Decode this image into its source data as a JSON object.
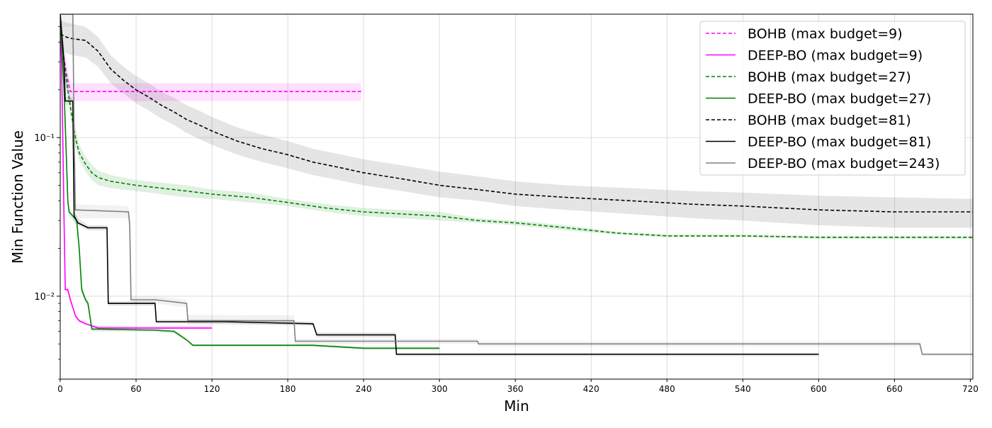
{
  "chart_data": {
    "type": "line",
    "title": "",
    "xlabel": "Min",
    "ylabel": "Min Function Value",
    "xlim": [
      0,
      722
    ],
    "ylim": [
      0.003,
      0.6
    ],
    "yscale": "log",
    "grid": true,
    "legend_position": "top-right",
    "x_ticks": [
      0,
      60,
      120,
      180,
      240,
      300,
      360,
      420,
      480,
      540,
      600,
      660,
      720
    ],
    "x_tick_labels": [
      "0",
      "60",
      "120",
      "180",
      "240",
      "300",
      "360",
      "420",
      "480",
      "540",
      "600",
      "660",
      "720"
    ],
    "y_ticks": [
      0.01,
      0.1
    ],
    "y_tick_labels": [
      "10⁻²",
      "10⁻¹"
    ],
    "series": [
      {
        "name": "BOHB (max budget=9)",
        "color": "#ff00ff",
        "style": "dashed",
        "x": [
          0,
          5,
          8,
          10,
          238
        ],
        "y": [
          0.45,
          0.25,
          0.195,
          0.195,
          0.195
        ],
        "band_low": [
          0.35,
          0.2,
          0.17,
          0.17,
          0.17
        ],
        "band_high": [
          0.55,
          0.3,
          0.22,
          0.22,
          0.22
        ]
      },
      {
        "name": "DEEP-BO (max budget=9)",
        "color": "#ff00ff",
        "style": "solid",
        "x": [
          0,
          1,
          2,
          3,
          4,
          6,
          8,
          10,
          12,
          15,
          20,
          25,
          30,
          120
        ],
        "y": [
          0.6,
          0.3,
          0.1,
          0.03,
          0.011,
          0.011,
          0.0095,
          0.0085,
          0.0075,
          0.007,
          0.0067,
          0.0065,
          0.0063,
          0.0063
        ],
        "band_low": [
          0.5,
          0.25,
          0.08,
          0.025,
          0.0105,
          0.0105,
          0.009,
          0.0082,
          0.0073,
          0.0068,
          0.0066,
          0.0064,
          0.0062,
          0.0062
        ],
        "band_high": [
          0.7,
          0.35,
          0.12,
          0.035,
          0.0115,
          0.0115,
          0.01,
          0.0088,
          0.0078,
          0.0072,
          0.0069,
          0.0066,
          0.0065,
          0.0065
        ]
      },
      {
        "name": "BOHB (max budget=27)",
        "color": "#008000",
        "style": "dashed",
        "x": [
          0,
          3,
          6,
          9,
          12,
          15,
          20,
          25,
          30,
          40,
          60,
          80,
          100,
          120,
          150,
          180,
          210,
          240,
          270,
          300,
          330,
          360,
          400,
          440,
          480,
          540,
          600,
          660,
          722
        ],
        "y": [
          0.45,
          0.3,
          0.2,
          0.14,
          0.1,
          0.08,
          0.068,
          0.06,
          0.056,
          0.053,
          0.05,
          0.048,
          0.046,
          0.044,
          0.042,
          0.039,
          0.036,
          0.034,
          0.033,
          0.032,
          0.03,
          0.029,
          0.027,
          0.025,
          0.024,
          0.024,
          0.0235,
          0.0235,
          0.0235
        ],
        "band_low": [
          0.4,
          0.26,
          0.17,
          0.12,
          0.088,
          0.071,
          0.061,
          0.054,
          0.05,
          0.048,
          0.046,
          0.044,
          0.042,
          0.041,
          0.039,
          0.037,
          0.034,
          0.032,
          0.031,
          0.03,
          0.029,
          0.028,
          0.026,
          0.0245,
          0.0235,
          0.0235,
          0.023,
          0.023,
          0.023
        ],
        "band_high": [
          0.5,
          0.34,
          0.23,
          0.16,
          0.115,
          0.09,
          0.076,
          0.067,
          0.062,
          0.058,
          0.054,
          0.052,
          0.05,
          0.047,
          0.045,
          0.041,
          0.038,
          0.036,
          0.035,
          0.034,
          0.031,
          0.03,
          0.028,
          0.0255,
          0.0245,
          0.0245,
          0.024,
          0.024,
          0.024
        ]
      },
      {
        "name": "DEEP-BO (max budget=27)",
        "color": "#008000",
        "style": "solid",
        "x": [
          0,
          3,
          5,
          6,
          7,
          10,
          13,
          15,
          17,
          20,
          22,
          25,
          30,
          75,
          90,
          100,
          105,
          200,
          240,
          300
        ],
        "y": [
          0.6,
          0.2,
          0.07,
          0.04,
          0.034,
          0.032,
          0.03,
          0.02,
          0.011,
          0.0095,
          0.009,
          0.0062,
          0.0062,
          0.0061,
          0.006,
          0.0053,
          0.0049,
          0.0049,
          0.0047,
          0.0047
        ],
        "band_low": [
          0.55,
          0.18,
          0.065,
          0.037,
          0.032,
          0.03,
          0.028,
          0.018,
          0.0105,
          0.009,
          0.0085,
          0.006,
          0.006,
          0.006,
          0.0058,
          0.0052,
          0.0048,
          0.0048,
          0.0046,
          0.0046
        ],
        "band_high": [
          0.65,
          0.22,
          0.075,
          0.043,
          0.036,
          0.034,
          0.032,
          0.022,
          0.0118,
          0.01,
          0.0095,
          0.0065,
          0.0065,
          0.0063,
          0.0062,
          0.0054,
          0.005,
          0.005,
          0.0048,
          0.0048
        ]
      },
      {
        "name": "BOHB (max budget=81)",
        "color": "#000000",
        "style": "dashed",
        "x": [
          0,
          5,
          10,
          20,
          30,
          40,
          50,
          60,
          70,
          80,
          90,
          100,
          110,
          120,
          140,
          160,
          180,
          200,
          220,
          240,
          270,
          300,
          330,
          360,
          400,
          450,
          500,
          540,
          570,
          600,
          660,
          722
        ],
        "y": [
          0.45,
          0.43,
          0.42,
          0.41,
          0.35,
          0.27,
          0.23,
          0.2,
          0.18,
          0.16,
          0.145,
          0.13,
          0.12,
          0.11,
          0.095,
          0.085,
          0.078,
          0.07,
          0.065,
          0.06,
          0.055,
          0.05,
          0.047,
          0.044,
          0.042,
          0.04,
          0.038,
          0.037,
          0.036,
          0.035,
          0.034,
          0.034
        ],
        "band_low": [
          0.36,
          0.34,
          0.33,
          0.32,
          0.28,
          0.22,
          0.19,
          0.165,
          0.148,
          0.132,
          0.12,
          0.107,
          0.098,
          0.09,
          0.078,
          0.07,
          0.064,
          0.058,
          0.054,
          0.05,
          0.046,
          0.042,
          0.04,
          0.037,
          0.035,
          0.033,
          0.031,
          0.03,
          0.029,
          0.028,
          0.027,
          0.027
        ],
        "band_high": [
          0.55,
          0.53,
          0.52,
          0.5,
          0.43,
          0.33,
          0.28,
          0.245,
          0.22,
          0.195,
          0.178,
          0.16,
          0.148,
          0.135,
          0.116,
          0.104,
          0.095,
          0.085,
          0.079,
          0.073,
          0.067,
          0.061,
          0.057,
          0.053,
          0.05,
          0.048,
          0.046,
          0.045,
          0.044,
          0.043,
          0.042,
          0.041
        ]
      },
      {
        "name": "DEEP-BO (max budget=81)",
        "color": "#000000",
        "style": "solid",
        "x": [
          0,
          3,
          4,
          5,
          10,
          11,
          14,
          22,
          37,
          38,
          75,
          76,
          130,
          200,
          203,
          265,
          266,
          600
        ],
        "y": [
          0.6,
          0.3,
          0.17,
          0.17,
          0.17,
          0.032,
          0.029,
          0.027,
          0.027,
          0.009,
          0.009,
          0.0069,
          0.0069,
          0.0067,
          0.0057,
          0.0057,
          0.0043,
          0.0043
        ],
        "band_low": [
          0.55,
          0.27,
          0.16,
          0.16,
          0.16,
          0.03,
          0.028,
          0.026,
          0.026,
          0.0087,
          0.0087,
          0.0067,
          0.0067,
          0.0065,
          0.0055,
          0.0055,
          0.0042,
          0.0042
        ],
        "band_high": [
          0.65,
          0.33,
          0.18,
          0.18,
          0.18,
          0.034,
          0.031,
          0.028,
          0.028,
          0.0093,
          0.0093,
          0.0071,
          0.0071,
          0.0069,
          0.0059,
          0.0059,
          0.0044,
          0.0044
        ]
      },
      {
        "name": "DEEP-BO (max budget=243)",
        "color": "#808080",
        "style": "solid",
        "x": [
          0,
          8,
          10,
          11,
          12,
          54,
          55,
          56,
          75,
          100,
          101,
          185,
          186,
          330,
          331,
          680,
          682,
          722
        ],
        "y": [
          0.6,
          0.6,
          0.6,
          0.1,
          0.035,
          0.034,
          0.028,
          0.0095,
          0.0095,
          0.009,
          0.007,
          0.007,
          0.0052,
          0.0052,
          0.005,
          0.005,
          0.0043,
          0.0043
        ],
        "band_low": [
          0.5,
          0.5,
          0.5,
          0.085,
          0.031,
          0.031,
          0.025,
          0.009,
          0.009,
          0.0085,
          0.0066,
          0.0066,
          0.005,
          0.005,
          0.0048,
          0.0048,
          0.0042,
          0.0042
        ],
        "band_high": [
          0.7,
          0.7,
          0.7,
          0.12,
          0.038,
          0.037,
          0.031,
          0.01,
          0.01,
          0.0095,
          0.0076,
          0.0076,
          0.0054,
          0.0054,
          0.0052,
          0.0052,
          0.0044,
          0.0044
        ]
      }
    ]
  }
}
